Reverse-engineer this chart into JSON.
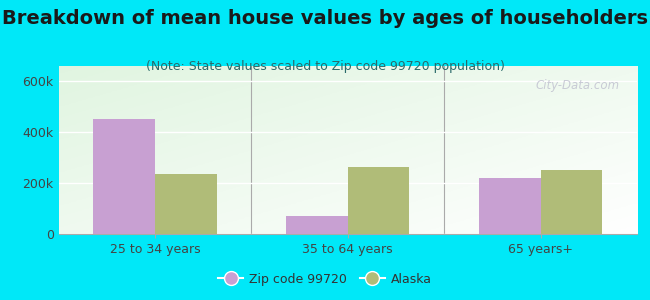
{
  "title": "Breakdown of mean house values by ages of householders",
  "subtitle": "(Note: State values scaled to Zip code 99720 population)",
  "categories": [
    "25 to 34 years",
    "35 to 64 years",
    "65 years+"
  ],
  "zip_values": [
    450000,
    70000,
    220000
  ],
  "alaska_values": [
    235000,
    265000,
    250000
  ],
  "zip_color": "#c8a0d2",
  "alaska_color": "#b0bc78",
  "background_outer": "#00e8f8",
  "ylim": [
    0,
    660000
  ],
  "yticks": [
    0,
    200000,
    400000,
    600000
  ],
  "ytick_labels": [
    "0",
    "200k",
    "400k",
    "600k"
  ],
  "bar_width": 0.32,
  "legend_zip_label": "Zip code 99720",
  "legend_alaska_label": "Alaska",
  "title_fontsize": 14,
  "subtitle_fontsize": 9,
  "tick_fontsize": 9,
  "legend_fontsize": 9,
  "watermark_text": "City-Data.com"
}
